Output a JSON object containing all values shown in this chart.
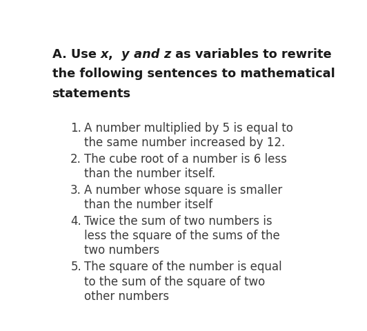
{
  "background_color": "#ffffff",
  "text_color": "#3a3a3a",
  "title_color": "#1a1a1a",
  "title_fontsize": 12.8,
  "body_fontsize": 12.0,
  "title_parts_line1": [
    [
      "A. Use ",
      true,
      false
    ],
    [
      "x",
      true,
      true
    ],
    [
      ",  ",
      true,
      false
    ],
    [
      "y",
      true,
      true
    ],
    [
      " and ",
      true,
      true
    ],
    [
      "z",
      true,
      true
    ],
    [
      " as variables to rewrite",
      true,
      false
    ]
  ],
  "title_line2": "the following sentences to mathematical",
  "title_line3": "statements",
  "items": [
    {
      "num": "1.",
      "lines": [
        "A number multiplied by 5 is equal to",
        "the same number increased by 12."
      ]
    },
    {
      "num": "2.",
      "lines": [
        "The cube root of a number is 6 less",
        "than the number itself."
      ]
    },
    {
      "num": "3.",
      "lines": [
        "A number whose square is smaller",
        "than the number itself"
      ]
    },
    {
      "num": "4.",
      "lines": [
        "Twice the sum of two numbers is",
        "less the square of the sums of the",
        "two numbers"
      ]
    },
    {
      "num": "5.",
      "lines": [
        "The square of the number is equal",
        "to the sum of the square of two",
        "other numbers"
      ]
    }
  ]
}
